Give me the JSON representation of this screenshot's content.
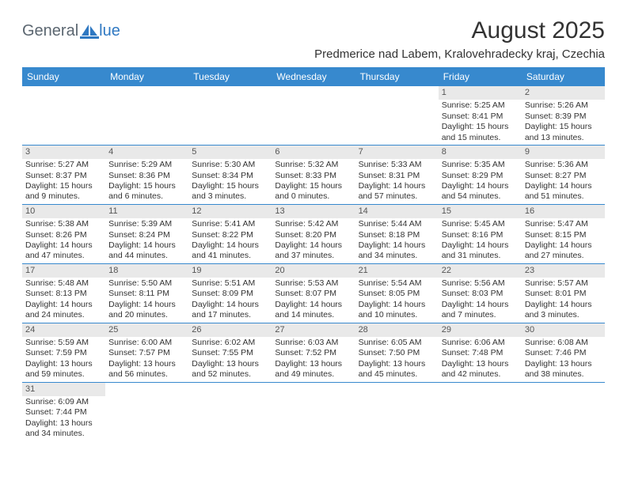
{
  "logo": {
    "part1": "General",
    "part2": "lue",
    "shape_color": "#2f78c2"
  },
  "title": "August 2025",
  "location": "Predmerice nad Labem, Kralovehradecky kraj, Czechia",
  "header_bg": "#3789ce",
  "daynum_bg": "#e9e9e9",
  "border_color": "#3789ce",
  "days_of_week": [
    "Sunday",
    "Monday",
    "Tuesday",
    "Wednesday",
    "Thursday",
    "Friday",
    "Saturday"
  ],
  "weeks": [
    [
      null,
      null,
      null,
      null,
      null,
      {
        "n": "1",
        "sr": "Sunrise: 5:25 AM",
        "ss": "Sunset: 8:41 PM",
        "d1": "Daylight: 15 hours",
        "d2": "and 15 minutes."
      },
      {
        "n": "2",
        "sr": "Sunrise: 5:26 AM",
        "ss": "Sunset: 8:39 PM",
        "d1": "Daylight: 15 hours",
        "d2": "and 13 minutes."
      }
    ],
    [
      {
        "n": "3",
        "sr": "Sunrise: 5:27 AM",
        "ss": "Sunset: 8:37 PM",
        "d1": "Daylight: 15 hours",
        "d2": "and 9 minutes."
      },
      {
        "n": "4",
        "sr": "Sunrise: 5:29 AM",
        "ss": "Sunset: 8:36 PM",
        "d1": "Daylight: 15 hours",
        "d2": "and 6 minutes."
      },
      {
        "n": "5",
        "sr": "Sunrise: 5:30 AM",
        "ss": "Sunset: 8:34 PM",
        "d1": "Daylight: 15 hours",
        "d2": "and 3 minutes."
      },
      {
        "n": "6",
        "sr": "Sunrise: 5:32 AM",
        "ss": "Sunset: 8:33 PM",
        "d1": "Daylight: 15 hours",
        "d2": "and 0 minutes."
      },
      {
        "n": "7",
        "sr": "Sunrise: 5:33 AM",
        "ss": "Sunset: 8:31 PM",
        "d1": "Daylight: 14 hours",
        "d2": "and 57 minutes."
      },
      {
        "n": "8",
        "sr": "Sunrise: 5:35 AM",
        "ss": "Sunset: 8:29 PM",
        "d1": "Daylight: 14 hours",
        "d2": "and 54 minutes."
      },
      {
        "n": "9",
        "sr": "Sunrise: 5:36 AM",
        "ss": "Sunset: 8:27 PM",
        "d1": "Daylight: 14 hours",
        "d2": "and 51 minutes."
      }
    ],
    [
      {
        "n": "10",
        "sr": "Sunrise: 5:38 AM",
        "ss": "Sunset: 8:26 PM",
        "d1": "Daylight: 14 hours",
        "d2": "and 47 minutes."
      },
      {
        "n": "11",
        "sr": "Sunrise: 5:39 AM",
        "ss": "Sunset: 8:24 PM",
        "d1": "Daylight: 14 hours",
        "d2": "and 44 minutes."
      },
      {
        "n": "12",
        "sr": "Sunrise: 5:41 AM",
        "ss": "Sunset: 8:22 PM",
        "d1": "Daylight: 14 hours",
        "d2": "and 41 minutes."
      },
      {
        "n": "13",
        "sr": "Sunrise: 5:42 AM",
        "ss": "Sunset: 8:20 PM",
        "d1": "Daylight: 14 hours",
        "d2": "and 37 minutes."
      },
      {
        "n": "14",
        "sr": "Sunrise: 5:44 AM",
        "ss": "Sunset: 8:18 PM",
        "d1": "Daylight: 14 hours",
        "d2": "and 34 minutes."
      },
      {
        "n": "15",
        "sr": "Sunrise: 5:45 AM",
        "ss": "Sunset: 8:16 PM",
        "d1": "Daylight: 14 hours",
        "d2": "and 31 minutes."
      },
      {
        "n": "16",
        "sr": "Sunrise: 5:47 AM",
        "ss": "Sunset: 8:15 PM",
        "d1": "Daylight: 14 hours",
        "d2": "and 27 minutes."
      }
    ],
    [
      {
        "n": "17",
        "sr": "Sunrise: 5:48 AM",
        "ss": "Sunset: 8:13 PM",
        "d1": "Daylight: 14 hours",
        "d2": "and 24 minutes."
      },
      {
        "n": "18",
        "sr": "Sunrise: 5:50 AM",
        "ss": "Sunset: 8:11 PM",
        "d1": "Daylight: 14 hours",
        "d2": "and 20 minutes."
      },
      {
        "n": "19",
        "sr": "Sunrise: 5:51 AM",
        "ss": "Sunset: 8:09 PM",
        "d1": "Daylight: 14 hours",
        "d2": "and 17 minutes."
      },
      {
        "n": "20",
        "sr": "Sunrise: 5:53 AM",
        "ss": "Sunset: 8:07 PM",
        "d1": "Daylight: 14 hours",
        "d2": "and 14 minutes."
      },
      {
        "n": "21",
        "sr": "Sunrise: 5:54 AM",
        "ss": "Sunset: 8:05 PM",
        "d1": "Daylight: 14 hours",
        "d2": "and 10 minutes."
      },
      {
        "n": "22",
        "sr": "Sunrise: 5:56 AM",
        "ss": "Sunset: 8:03 PM",
        "d1": "Daylight: 14 hours",
        "d2": "and 7 minutes."
      },
      {
        "n": "23",
        "sr": "Sunrise: 5:57 AM",
        "ss": "Sunset: 8:01 PM",
        "d1": "Daylight: 14 hours",
        "d2": "and 3 minutes."
      }
    ],
    [
      {
        "n": "24",
        "sr": "Sunrise: 5:59 AM",
        "ss": "Sunset: 7:59 PM",
        "d1": "Daylight: 13 hours",
        "d2": "and 59 minutes."
      },
      {
        "n": "25",
        "sr": "Sunrise: 6:00 AM",
        "ss": "Sunset: 7:57 PM",
        "d1": "Daylight: 13 hours",
        "d2": "and 56 minutes."
      },
      {
        "n": "26",
        "sr": "Sunrise: 6:02 AM",
        "ss": "Sunset: 7:55 PM",
        "d1": "Daylight: 13 hours",
        "d2": "and 52 minutes."
      },
      {
        "n": "27",
        "sr": "Sunrise: 6:03 AM",
        "ss": "Sunset: 7:52 PM",
        "d1": "Daylight: 13 hours",
        "d2": "and 49 minutes."
      },
      {
        "n": "28",
        "sr": "Sunrise: 6:05 AM",
        "ss": "Sunset: 7:50 PM",
        "d1": "Daylight: 13 hours",
        "d2": "and 45 minutes."
      },
      {
        "n": "29",
        "sr": "Sunrise: 6:06 AM",
        "ss": "Sunset: 7:48 PM",
        "d1": "Daylight: 13 hours",
        "d2": "and 42 minutes."
      },
      {
        "n": "30",
        "sr": "Sunrise: 6:08 AM",
        "ss": "Sunset: 7:46 PM",
        "d1": "Daylight: 13 hours",
        "d2": "and 38 minutes."
      }
    ],
    [
      {
        "n": "31",
        "sr": "Sunrise: 6:09 AM",
        "ss": "Sunset: 7:44 PM",
        "d1": "Daylight: 13 hours",
        "d2": "and 34 minutes."
      },
      null,
      null,
      null,
      null,
      null,
      null
    ]
  ]
}
